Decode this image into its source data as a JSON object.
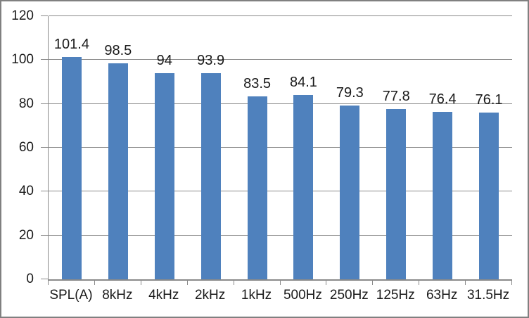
{
  "chart_data": {
    "type": "bar",
    "title": "",
    "xlabel": "",
    "ylabel": "",
    "categories": [
      "SPL(A)",
      "8kHz",
      "4kHz",
      "2kHz",
      "1kHz",
      "500Hz",
      "250Hz",
      "125Hz",
      "63Hz",
      "31.5Hz"
    ],
    "values": [
      101.4,
      98.5,
      94,
      93.9,
      83.5,
      84.1,
      79.3,
      77.8,
      76.4,
      76.1
    ],
    "data_labels": [
      "101.4",
      "98.5",
      "94",
      "93.9",
      "83.5",
      "84.1",
      "79.3",
      "77.8",
      "76.4",
      "76.1"
    ],
    "ylim": [
      0,
      120
    ],
    "y_ticks": [
      "0",
      "20",
      "40",
      "60",
      "80",
      "100",
      "120"
    ],
    "grid": true,
    "legend": "none",
    "colors": {
      "bar": "#4f81bd",
      "gridline": "#8a8a8a",
      "axis": "#8a8a8a",
      "frame_border": "#808080",
      "text": "#1a1a1a",
      "background": "#ffffff"
    }
  }
}
